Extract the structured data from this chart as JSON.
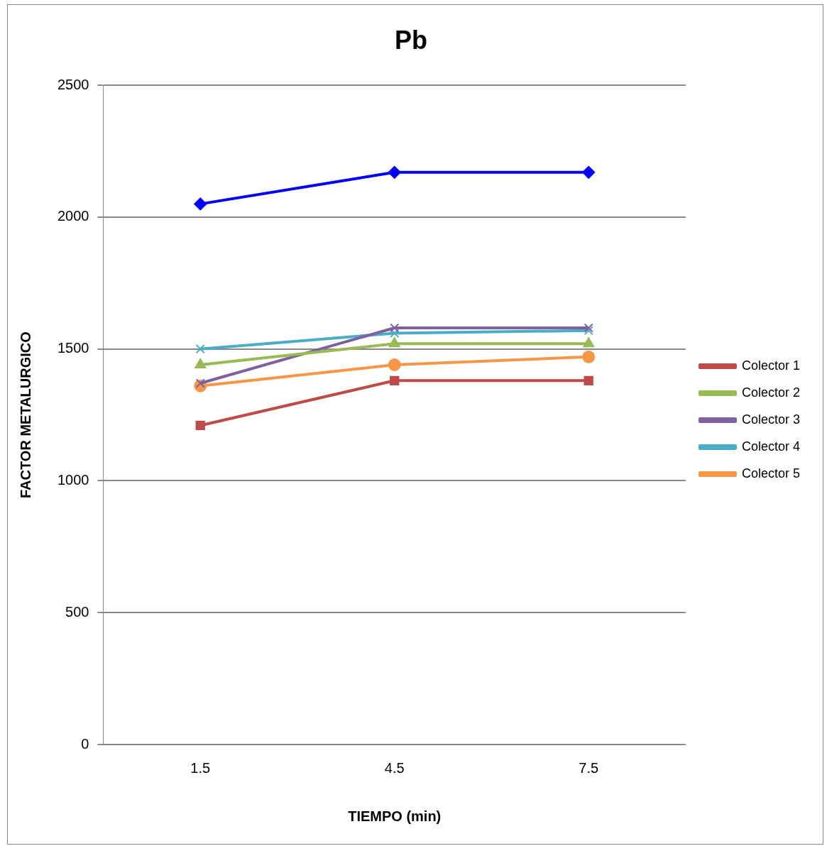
{
  "chart_data": {
    "type": "line",
    "title": "Pb",
    "xlabel": "TIEMPO (min)",
    "ylabel": "FACTOR METALURGICO",
    "categories": [
      "1.5",
      "4.5",
      "7.5"
    ],
    "series": [
      {
        "color": "#0000ff",
        "marker": "diamond",
        "values": [
          2050,
          2170,
          2170
        ]
      },
      {
        "name": "Colector 1",
        "color": "#be4b48",
        "marker": "square",
        "values": [
          1210,
          1380,
          1380
        ]
      },
      {
        "name": "Colector 2",
        "color": "#98b954",
        "marker": "triangle",
        "values": [
          1440,
          1520,
          1520
        ]
      },
      {
        "name": "Colector 3",
        "color": "#7d60a0",
        "marker": "cross",
        "values": [
          1370,
          1580,
          1580
        ]
      },
      {
        "name": "Colector 4",
        "color": "#4bacc6",
        "marker": "cross",
        "values": [
          1500,
          1560,
          1570
        ]
      },
      {
        "name": "Colector 5",
        "color": "#f79646",
        "marker": "circle",
        "values": [
          1360,
          1440,
          1470
        ]
      }
    ],
    "ylim": [
      0,
      2500
    ],
    "yticks": [
      0,
      500,
      1000,
      1500,
      2000,
      2500
    ],
    "grid": "y",
    "legend": "right"
  }
}
